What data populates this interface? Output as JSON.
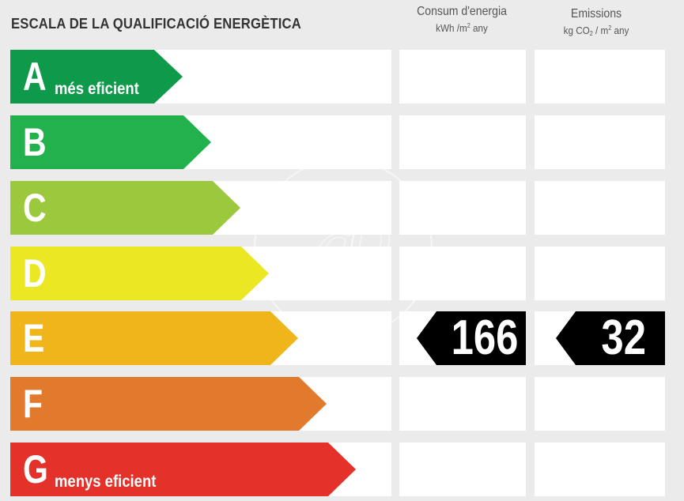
{
  "title": "ESCALA DE LA QUALIFICACIÓ ENERGÈTICA",
  "consum_header": {
    "line1": "Consum d'energia",
    "unit_a": "kWh /m",
    "unit_sup": "2",
    "unit_b": " any"
  },
  "emissions_header": {
    "line1": "Emissions",
    "unit_a": "kg CO",
    "unit_sub": "2",
    "unit_b": " / m",
    "unit_sup": "2",
    "unit_c": " any"
  },
  "ratings": [
    {
      "letter": "A",
      "label": "més eficient",
      "color": "#0e9a4a"
    },
    {
      "letter": "B",
      "label": "",
      "color": "#22b14c"
    },
    {
      "letter": "C",
      "label": "",
      "color": "#9bc83c"
    },
    {
      "letter": "D",
      "label": "",
      "color": "#ebe723"
    },
    {
      "letter": "E",
      "label": "",
      "color": "#f1b51c"
    },
    {
      "letter": "F",
      "label": "",
      "color": "#e17a2d"
    },
    {
      "letter": "G",
      "label": "menys eficient",
      "color": "#e4322b"
    }
  ],
  "current_rating": "E",
  "consum_value": "166",
  "emissions_value": "32",
  "watermark_icon": "ap-logo-watermark"
}
